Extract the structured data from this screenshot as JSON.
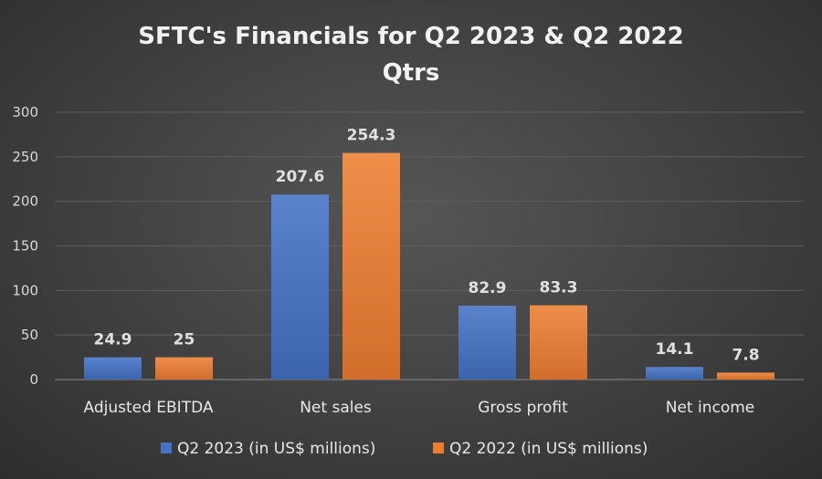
{
  "chart_data": {
    "type": "bar",
    "title": "SFTC's Financials for Q2 2023 & Q2 2022",
    "subtitle": "Qtrs",
    "categories": [
      "Adjusted EBITDA",
      "Net sales",
      "Gross profit",
      "Net income"
    ],
    "series": [
      {
        "name": "Q2 2023 (in US$ millions)",
        "values": [
          24.9,
          207.6,
          82.9,
          14.1
        ],
        "labels": [
          "24.9",
          "207.6",
          "82.9",
          "14.1"
        ],
        "color": "#4472c4"
      },
      {
        "name": "Q2 2022 (in US$ millions)",
        "values": [
          25,
          254.3,
          83.3,
          7.8
        ],
        "labels": [
          "25",
          "254.3",
          "83.3",
          "7.8"
        ],
        "color": "#ed7d31"
      }
    ],
    "ylim": [
      0,
      300
    ],
    "yticks": [
      "0",
      "50",
      "100",
      "150",
      "200",
      "250",
      "300"
    ],
    "xlabel": "",
    "ylabel": "",
    "grid": true,
    "legend": "bottom"
  }
}
